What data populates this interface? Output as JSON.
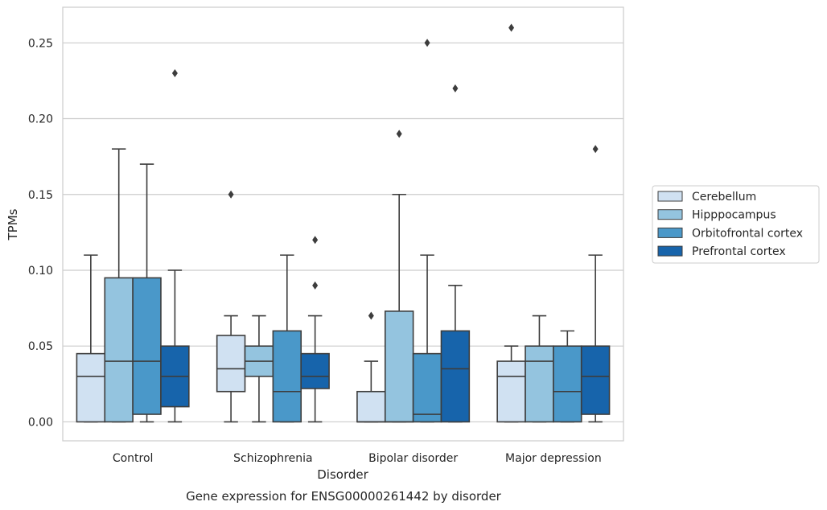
{
  "chart_data": {
    "type": "box",
    "caption": "Gene expression for ENSG00000261442 by disorder",
    "xlabel": "Disorder",
    "ylabel": "TPMs",
    "ylim": [
      -0.0125,
      0.2735
    ],
    "yticks": [
      0.0,
      0.05,
      0.1,
      0.15,
      0.2,
      0.25
    ],
    "ytick_labels": [
      "0.00",
      "0.05",
      "0.10",
      "0.15",
      "0.20",
      "0.25"
    ],
    "grid": true,
    "legend_position": "right",
    "categories": [
      "Control",
      "Schizophrenia",
      "Bipolar disorder",
      "Major depression"
    ],
    "series": [
      {
        "name": "Cerebellum",
        "color": "#d0e1f2",
        "boxes": [
          {
            "whisker_low": 0.0,
            "q1": 0.0,
            "median": 0.03,
            "q3": 0.045,
            "whisker_high": 0.11,
            "outliers": []
          },
          {
            "whisker_low": 0.0,
            "q1": 0.02,
            "median": 0.035,
            "q3": 0.057,
            "whisker_high": 0.07,
            "outliers": [
              0.15
            ]
          },
          {
            "whisker_low": 0.0,
            "q1": 0.0,
            "median": 0.0,
            "q3": 0.02,
            "whisker_high": 0.04,
            "outliers": [
              0.07
            ]
          },
          {
            "whisker_low": 0.0,
            "q1": 0.0,
            "median": 0.03,
            "q3": 0.04,
            "whisker_high": 0.05,
            "outliers": [
              0.26
            ]
          }
        ]
      },
      {
        "name": "Hipppocampus",
        "color": "#94c4df",
        "boxes": [
          {
            "whisker_low": 0.0,
            "q1": 0.0,
            "median": 0.04,
            "q3": 0.095,
            "whisker_high": 0.18,
            "outliers": []
          },
          {
            "whisker_low": 0.0,
            "q1": 0.03,
            "median": 0.04,
            "q3": 0.05,
            "whisker_high": 0.07,
            "outliers": []
          },
          {
            "whisker_low": 0.0,
            "q1": 0.0,
            "median": 0.0,
            "q3": 0.073,
            "whisker_high": 0.15,
            "outliers": [
              0.19
            ]
          },
          {
            "whisker_low": 0.0,
            "q1": 0.0,
            "median": 0.04,
            "q3": 0.05,
            "whisker_high": 0.07,
            "outliers": []
          }
        ]
      },
      {
        "name": "Orbitofrontal cortex",
        "color": "#4a98c9",
        "boxes": [
          {
            "whisker_low": 0.0,
            "q1": 0.005,
            "median": 0.04,
            "q3": 0.095,
            "whisker_high": 0.17,
            "outliers": []
          },
          {
            "whisker_low": 0.0,
            "q1": 0.0,
            "median": 0.02,
            "q3": 0.06,
            "whisker_high": 0.11,
            "outliers": []
          },
          {
            "whisker_low": 0.0,
            "q1": 0.0,
            "median": 0.005,
            "q3": 0.045,
            "whisker_high": 0.11,
            "outliers": [
              0.25
            ]
          },
          {
            "whisker_low": 0.0,
            "q1": 0.0,
            "median": 0.02,
            "q3": 0.05,
            "whisker_high": 0.06,
            "outliers": []
          }
        ]
      },
      {
        "name": "Prefrontal cortex",
        "color": "#1764ab",
        "boxes": [
          {
            "whisker_low": 0.0,
            "q1": 0.01,
            "median": 0.03,
            "q3": 0.05,
            "whisker_high": 0.1,
            "outliers": [
              0.23
            ]
          },
          {
            "whisker_low": 0.0,
            "q1": 0.022,
            "median": 0.03,
            "q3": 0.045,
            "whisker_high": 0.07,
            "outliers": [
              0.09,
              0.12
            ]
          },
          {
            "whisker_low": 0.0,
            "q1": 0.0,
            "median": 0.035,
            "q3": 0.06,
            "whisker_high": 0.09,
            "outliers": [
              0.22
            ]
          },
          {
            "whisker_low": 0.0,
            "q1": 0.005,
            "median": 0.03,
            "q3": 0.05,
            "whisker_high": 0.11,
            "outliers": [
              0.18
            ]
          }
        ]
      }
    ]
  }
}
